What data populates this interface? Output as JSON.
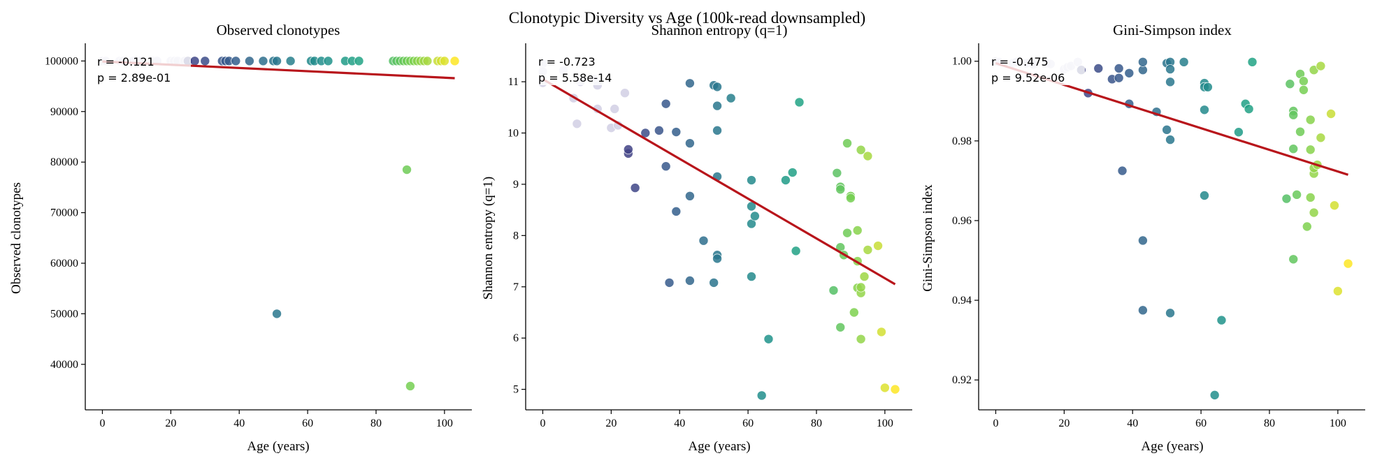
{
  "figure_title": "Clonotypic Diversity vs Age (100k-read downsampled)",
  "chart_data": [
    {
      "type": "scatter",
      "title": "Observed clonotypes",
      "xlabel": "Age (years)",
      "ylabel": "Observed clonotypes",
      "xlim": [
        -5,
        108
      ],
      "ylim": [
        31000,
        103500
      ],
      "xticks": [
        0,
        20,
        40,
        60,
        80,
        100
      ],
      "yticks": [
        40000,
        50000,
        60000,
        70000,
        80000,
        90000,
        100000
      ],
      "ytick_labels": [
        "40000",
        "50000",
        "60000",
        "70000",
        "80000",
        "90000",
        "100000"
      ],
      "annotation": [
        "r = -0.121",
        "p = 2.89e-01"
      ],
      "fit": {
        "x": [
          0,
          103
        ],
        "y": [
          99900,
          96600
        ]
      },
      "points": [
        [
          0,
          100000
        ],
        [
          1,
          100000
        ],
        [
          5,
          100000
        ],
        [
          6,
          100000
        ],
        [
          9,
          100000
        ],
        [
          11,
          100000
        ],
        [
          15,
          100000
        ],
        [
          16,
          100000
        ],
        [
          20,
          100000
        ],
        [
          21,
          100000
        ],
        [
          22,
          100000
        ],
        [
          24,
          100000
        ],
        [
          25,
          100000
        ],
        [
          27,
          100000
        ],
        [
          30,
          100000
        ],
        [
          35,
          100000
        ],
        [
          36,
          100000
        ],
        [
          37,
          100000
        ],
        [
          39,
          100000
        ],
        [
          43,
          100000
        ],
        [
          47,
          100000
        ],
        [
          50,
          100000
        ],
        [
          51,
          100000
        ],
        [
          55,
          100000
        ],
        [
          61,
          100000
        ],
        [
          62,
          100000
        ],
        [
          64,
          100000
        ],
        [
          66,
          100000
        ],
        [
          71,
          100000
        ],
        [
          73,
          100000
        ],
        [
          75,
          100000
        ],
        [
          85,
          100000
        ],
        [
          86,
          100000
        ],
        [
          87,
          100000
        ],
        [
          88,
          100000
        ],
        [
          89,
          100000
        ],
        [
          90,
          100000
        ],
        [
          91,
          100000
        ],
        [
          92,
          100000
        ],
        [
          93,
          100000
        ],
        [
          94,
          100000
        ],
        [
          95,
          100000
        ],
        [
          98,
          100000
        ],
        [
          99,
          100000
        ],
        [
          100,
          100000
        ],
        [
          103,
          100000
        ],
        [
          51,
          50000
        ],
        [
          89,
          78500
        ],
        [
          90,
          35700
        ]
      ]
    },
    {
      "type": "scatter",
      "title": "Shannon entropy (q=1)",
      "xlabel": "Age (years)",
      "ylabel": "Shannon entropy (q=1)",
      "xlim": [
        -5,
        108
      ],
      "ylim": [
        4.6,
        11.75
      ],
      "xticks": [
        0,
        20,
        40,
        60,
        80,
        100
      ],
      "yticks": [
        5,
        6,
        7,
        8,
        9,
        10,
        11
      ],
      "ytick_labels": [
        "5",
        "6",
        "7",
        "8",
        "9",
        "10",
        "11"
      ],
      "annotation": [
        "r = -0.723",
        "p = 5.58e-14"
      ],
      "fit": {
        "x": [
          0,
          103
        ],
        "y": [
          11.05,
          7.05
        ]
      },
      "points": [
        [
          0,
          11.35
        ],
        [
          0,
          11.2
        ],
        [
          0,
          10.98
        ],
        [
          6,
          11.22
        ],
        [
          9,
          10.68
        ],
        [
          10,
          10.18
        ],
        [
          11,
          11.0
        ],
        [
          15,
          11.05
        ],
        [
          16,
          10.47
        ],
        [
          16,
          10.93
        ],
        [
          20,
          10.1
        ],
        [
          21,
          10.47
        ],
        [
          22,
          10.15
        ],
        [
          24,
          10.78
        ],
        [
          25,
          9.6
        ],
        [
          25,
          9.68
        ],
        [
          27,
          8.93
        ],
        [
          30,
          10.0
        ],
        [
          34,
          10.05
        ],
        [
          36,
          9.35
        ],
        [
          36,
          10.57
        ],
        [
          37,
          7.08
        ],
        [
          39,
          8.47
        ],
        [
          39,
          10.02
        ],
        [
          43,
          9.8
        ],
        [
          43,
          8.77
        ],
        [
          43,
          10.97
        ],
        [
          43,
          7.12
        ],
        [
          47,
          7.9
        ],
        [
          50,
          10.93
        ],
        [
          50,
          7.08
        ],
        [
          51,
          10.53
        ],
        [
          51,
          10.05
        ],
        [
          51,
          9.15
        ],
        [
          51,
          7.62
        ],
        [
          51,
          7.55
        ],
        [
          51,
          10.9
        ],
        [
          55,
          10.68
        ],
        [
          61,
          9.08
        ],
        [
          61,
          8.57
        ],
        [
          61,
          8.23
        ],
        [
          61,
          7.2
        ],
        [
          62,
          8.38
        ],
        [
          64,
          4.88
        ],
        [
          66,
          5.98
        ],
        [
          71,
          9.08
        ],
        [
          73,
          9.23
        ],
        [
          74,
          7.7
        ],
        [
          75,
          10.6
        ],
        [
          85,
          6.93
        ],
        [
          86,
          9.22
        ],
        [
          87,
          8.95
        ],
        [
          87,
          8.9
        ],
        [
          87,
          7.77
        ],
        [
          87,
          6.21
        ],
        [
          88,
          7.62
        ],
        [
          89,
          9.8
        ],
        [
          89,
          8.05
        ],
        [
          90,
          8.77
        ],
        [
          90,
          8.73
        ],
        [
          91,
          6.5
        ],
        [
          92,
          7.5
        ],
        [
          92,
          8.1
        ],
        [
          92,
          6.98
        ],
        [
          93,
          9.67
        ],
        [
          93,
          6.88
        ],
        [
          93,
          5.98
        ],
        [
          93,
          6.99
        ],
        [
          94,
          7.2
        ],
        [
          95,
          7.72
        ],
        [
          95,
          9.55
        ],
        [
          98,
          7.8
        ],
        [
          99,
          6.12
        ],
        [
          100,
          5.03
        ],
        [
          103,
          5.0
        ]
      ]
    },
    {
      "type": "scatter",
      "title": "Gini-Simpson index",
      "xlabel": "Age (years)",
      "ylabel": "Gini-Simpson index",
      "xlim": [
        -5,
        108
      ],
      "ylim": [
        0.9125,
        1.0045
      ],
      "xticks": [
        0,
        20,
        40,
        60,
        80,
        100
      ],
      "yticks": [
        0.92,
        0.94,
        0.96,
        0.98,
        1.0
      ],
      "ytick_labels": [
        "0.92",
        "0.94",
        "0.96",
        "0.98",
        "1.00"
      ],
      "annotation": [
        "r = -0.475",
        "p = 9.52e-06"
      ],
      "fit": {
        "x": [
          0,
          103
        ],
        "y": [
          0.9995,
          0.9715
        ]
      },
      "points": [
        [
          0,
          1.0
        ],
        [
          1,
          0.9998
        ],
        [
          5,
          0.9995
        ],
        [
          6,
          0.9998
        ],
        [
          9,
          0.9995
        ],
        [
          11,
          0.9992
        ],
        [
          15,
          0.9995
        ],
        [
          16,
          0.9993
        ],
        [
          20,
          0.998
        ],
        [
          21,
          0.9985
        ],
        [
          22,
          0.9988
        ],
        [
          24,
          0.9998
        ],
        [
          25,
          0.9978
        ],
        [
          27,
          0.992
        ],
        [
          30,
          0.9982
        ],
        [
          34,
          0.9955
        ],
        [
          36,
          0.9958
        ],
        [
          36,
          0.9982
        ],
        [
          37,
          0.9725
        ],
        [
          39,
          0.9893
        ],
        [
          39,
          0.997
        ],
        [
          43,
          0.9978
        ],
        [
          43,
          0.9998
        ],
        [
          43,
          0.955
        ],
        [
          43,
          0.9375
        ],
        [
          47,
          0.9873
        ],
        [
          50,
          0.9828
        ],
        [
          50,
          0.9995
        ],
        [
          51,
          0.9998
        ],
        [
          51,
          0.998
        ],
        [
          51,
          0.9948
        ],
        [
          51,
          0.9803
        ],
        [
          51,
          0.9368
        ],
        [
          55,
          0.9998
        ],
        [
          61,
          0.9945
        ],
        [
          61,
          0.9935
        ],
        [
          61,
          0.9878
        ],
        [
          61,
          0.9663
        ],
        [
          62,
          0.9935
        ],
        [
          64,
          0.9162
        ],
        [
          66,
          0.935
        ],
        [
          71,
          0.9822
        ],
        [
          73,
          0.9893
        ],
        [
          74,
          0.988
        ],
        [
          75,
          0.9998
        ],
        [
          85,
          0.9655
        ],
        [
          86,
          0.9943
        ],
        [
          87,
          0.9875
        ],
        [
          87,
          0.9865
        ],
        [
          87,
          0.978
        ],
        [
          87,
          0.9503
        ],
        [
          88,
          0.9665
        ],
        [
          89,
          0.9968
        ],
        [
          89,
          0.9823
        ],
        [
          90,
          0.995
        ],
        [
          90,
          0.9928
        ],
        [
          91,
          0.9585
        ],
        [
          92,
          0.9853
        ],
        [
          92,
          0.9778
        ],
        [
          92,
          0.9658
        ],
        [
          93,
          0.962
        ],
        [
          93,
          0.9718
        ],
        [
          93,
          0.9732
        ],
        [
          93,
          0.9978
        ],
        [
          94,
          0.974
        ],
        [
          95,
          0.9988
        ],
        [
          95,
          0.9808
        ],
        [
          98,
          0.9868
        ],
        [
          99,
          0.9638
        ],
        [
          100,
          0.9423
        ],
        [
          103,
          0.9492
        ]
      ]
    }
  ]
}
